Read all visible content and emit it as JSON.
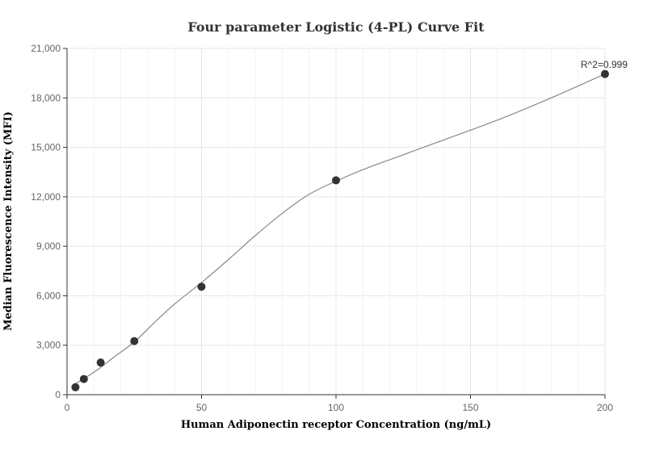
{
  "chart_data": {
    "type": "scatter",
    "title": "Four parameter Logistic (4-PL) Curve Fit",
    "xlabel": "Human Adiponectin receptor Concentration (ng/mL)",
    "ylabel": "Median Fluorescence Intensity (MFI)",
    "xlim": [
      0,
      200
    ],
    "ylim": [
      0,
      21000
    ],
    "x_ticks": [
      0,
      50,
      100,
      150,
      200
    ],
    "x_tick_labels": [
      "0",
      "50",
      "100",
      "150",
      "200"
    ],
    "y_ticks": [
      0,
      3000,
      6000,
      9000,
      12000,
      15000,
      18000,
      21000
    ],
    "y_tick_labels": [
      "0",
      "3,000",
      "6,000",
      "9,000",
      "12,000",
      "15,000",
      "18,000",
      "21,000"
    ],
    "grid": true,
    "legend": "none",
    "series": [
      {
        "points": [
          {
            "x": 3.125,
            "y": 450
          },
          {
            "x": 6.25,
            "y": 950
          },
          {
            "x": 12.5,
            "y": 1950
          },
          {
            "x": 25,
            "y": 3250
          },
          {
            "x": 50,
            "y": 6550
          },
          {
            "x": 100,
            "y": 13000
          },
          {
            "x": 200,
            "y": 19450
          }
        ]
      }
    ],
    "fit_curve": {
      "x": [
        3,
        8,
        12.5,
        18,
        25,
        32,
        40,
        50,
        60,
        70,
        80,
        90,
        100,
        110,
        125,
        140,
        160,
        180,
        200
      ],
      "y": [
        650,
        1150,
        1650,
        2350,
        3200,
        4300,
        5500,
        6800,
        8200,
        9650,
        11000,
        12150,
        12950,
        13650,
        14550,
        15450,
        16650,
        18000,
        19450
      ]
    },
    "annotation": "R^2=0.999",
    "colors": {
      "points": "#333333",
      "curve": "#888888",
      "grid": "#e6e6e6"
    }
  }
}
